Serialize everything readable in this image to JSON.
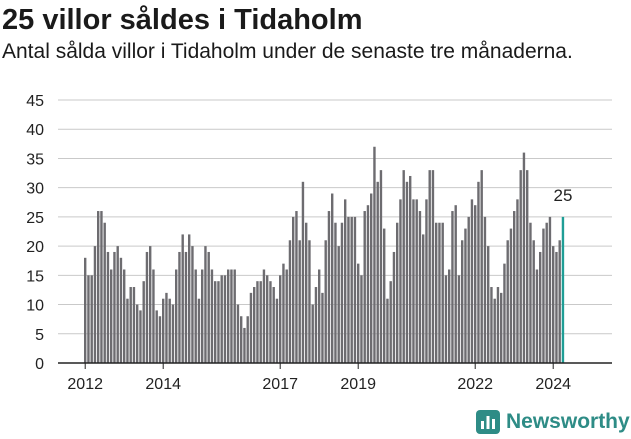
{
  "header": {
    "title": "25 villor såldes i Tidaholm",
    "subtitle": "Antal sålda villor i Tidaholm under de senaste tre månaderna."
  },
  "brand": {
    "name": "Newsworthy",
    "logo_icon": "newsworthy-chart-icon"
  },
  "colors": {
    "bar": "#6d6c70",
    "highlight": "#1f9e96",
    "grid": "#c9c9c9",
    "brand": "#2e8c86"
  },
  "chart_data": {
    "type": "bar",
    "title": "25 villor såldes i Tidaholm",
    "subtitle": "Antal sålda villor i Tidaholm under de senaste tre månaderna.",
    "xlabel": "",
    "ylabel": "",
    "ylim": [
      0,
      45
    ],
    "yticks": [
      0,
      5,
      10,
      15,
      20,
      25,
      30,
      35,
      40,
      45
    ],
    "xticks": [
      {
        "label": "2012",
        "index": 0
      },
      {
        "label": "2014",
        "index": 24
      },
      {
        "label": "2017",
        "index": 60
      },
      {
        "label": "2019",
        "index": 84
      },
      {
        "label": "2022",
        "index": 120
      },
      {
        "label": "2024",
        "index": 144
      }
    ],
    "grid": true,
    "period": "monthly, each value is the rolling three-month total",
    "values": [
      18,
      15,
      15,
      20,
      26,
      26,
      24,
      19,
      16,
      19,
      20,
      18,
      16,
      11,
      13,
      13,
      10,
      9,
      14,
      19,
      20,
      16,
      9,
      8,
      11,
      12,
      11,
      10,
      16,
      19,
      22,
      19,
      22,
      20,
      16,
      11,
      16,
      20,
      19,
      16,
      14,
      14,
      15,
      15,
      16,
      16,
      16,
      10,
      8,
      6,
      8,
      12,
      13,
      14,
      14,
      16,
      15,
      14,
      13,
      11,
      15,
      17,
      16,
      21,
      25,
      26,
      21,
      31,
      24,
      21,
      10,
      13,
      16,
      12,
      21,
      26,
      29,
      24,
      20,
      24,
      28,
      25,
      25,
      25,
      17,
      15,
      26,
      27,
      29,
      37,
      31,
      33,
      23,
      11,
      14,
      19,
      24,
      28,
      33,
      31,
      32,
      28,
      28,
      26,
      22,
      28,
      33,
      33,
      24,
      24,
      24,
      15,
      16,
      26,
      27,
      15,
      21,
      23,
      25,
      28,
      27,
      31,
      33,
      25,
      20,
      13,
      11,
      13,
      12,
      17,
      21,
      23,
      26,
      28,
      33,
      36,
      33,
      24,
      21,
      16,
      19,
      23,
      24,
      25,
      20,
      19,
      21,
      25
    ],
    "highlight": {
      "index": 147,
      "label": "25"
    }
  }
}
